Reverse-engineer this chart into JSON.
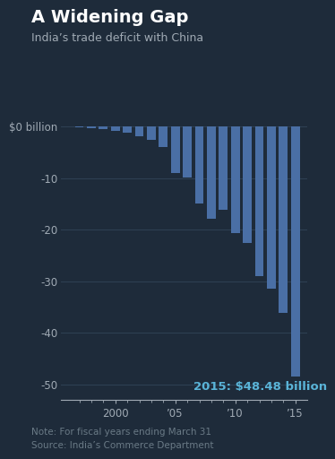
{
  "title": "A Widening Gap",
  "subtitle": "India’s trade deficit with China",
  "annotation": "2015: $48.48 billion",
  "note": "Note: For fiscal years ending March 31\nSource: India’s Commerce Department",
  "years": [
    1997,
    1998,
    1999,
    2000,
    2001,
    2002,
    2003,
    2004,
    2005,
    2006,
    2007,
    2008,
    2009,
    2010,
    2011,
    2012,
    2013,
    2014,
    2015
  ],
  "values": [
    -0.2,
    -0.3,
    -0.5,
    -0.8,
    -1.2,
    -1.8,
    -2.5,
    -4.0,
    -9.0,
    -9.8,
    -15.0,
    -17.8,
    -16.2,
    -20.7,
    -22.5,
    -29.0,
    -31.4,
    -36.2,
    -48.48
  ],
  "bar_color": "#4a6fa5",
  "background_color": "#1e2b3a",
  "text_color": "#a0aab4",
  "highlight_color": "#5ab4d8",
  "grid_color": "#2e3f52",
  "ylim": [
    -53,
    2
  ],
  "yticks": [
    0,
    -10,
    -20,
    -30,
    -40,
    -50
  ],
  "xlim": [
    1995.5,
    2016.0
  ]
}
